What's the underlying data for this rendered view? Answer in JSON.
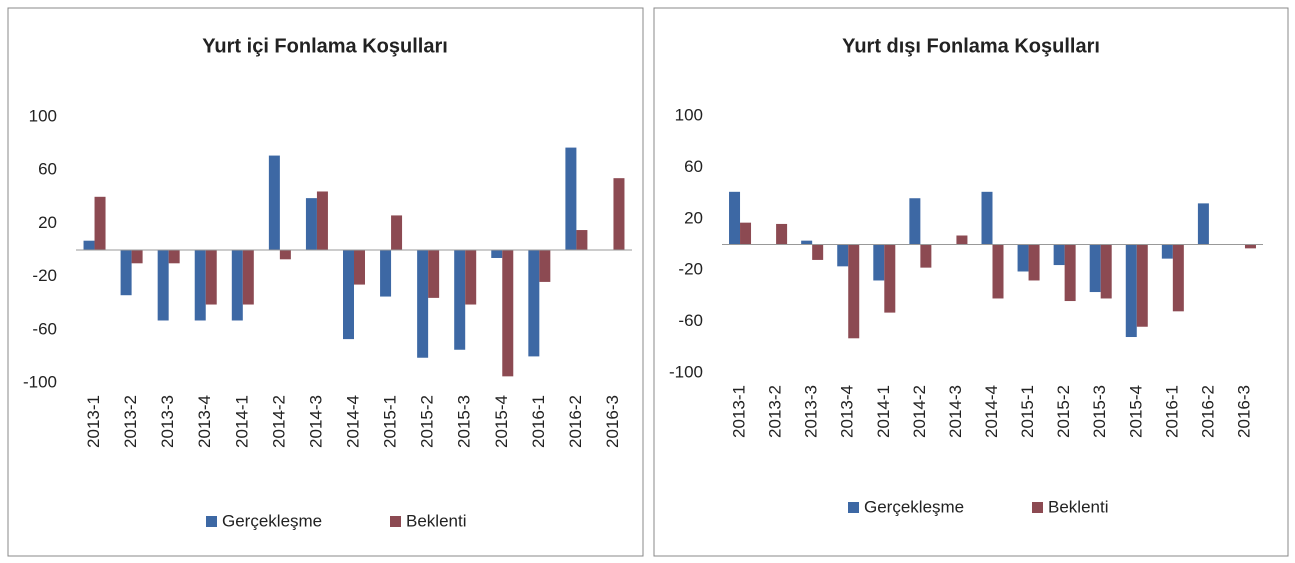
{
  "chart_data": [
    {
      "type": "bar",
      "title": "Yurt içi Fonlama Koşulları",
      "categories": [
        "2013-1",
        "2013-2",
        "2013-3",
        "2013-4",
        "2014-1",
        "2014-2",
        "2014-3",
        "2014-4",
        "2015-1",
        "2015-2",
        "2015-3",
        "2015-4",
        "2016-1",
        "2016-2",
        "2016-3"
      ],
      "series": [
        {
          "name": "Gerçekleşme",
          "color": "#3d68a4",
          "values": [
            7,
            -34,
            -53,
            -53,
            -53,
            71,
            39,
            -67,
            -35,
            -81,
            -75,
            -6,
            -80,
            77,
            0
          ]
        },
        {
          "name": "Beklenti",
          "color": "#8c4a52",
          "values": [
            40,
            -10,
            -10,
            -41,
            -41,
            -7,
            44,
            -26,
            26,
            -36,
            -41,
            -95,
            -24,
            15,
            54
          ]
        }
      ],
      "ylim": [
        -100,
        100
      ],
      "yticks": [
        -100,
        -60,
        -20,
        20,
        60,
        100
      ],
      "legend": "bottom"
    },
    {
      "type": "bar",
      "title": "Yurt dışı Fonlama Koşulları",
      "categories": [
        "2013-1",
        "2013-2",
        "2013-3",
        "2013-4",
        "2014-1",
        "2014-2",
        "2014-3",
        "2014-4",
        "2015-1",
        "2015-2",
        "2015-3",
        "2015-4",
        "2016-1",
        "2016-2",
        "2016-3"
      ],
      "series": [
        {
          "name": "Gerçekleşme",
          "color": "#3d68a4",
          "values": [
            41,
            0,
            3,
            -17,
            -28,
            36,
            0,
            41,
            -21,
            -16,
            -37,
            -72,
            -11,
            32,
            0
          ]
        },
        {
          "name": "Beklenti",
          "color": "#8c4a52",
          "values": [
            17,
            16,
            -12,
            -73,
            -53,
            -18,
            7,
            -42,
            -28,
            -44,
            -42,
            -64,
            -52,
            0,
            -3
          ]
        }
      ],
      "ylim": [
        -100,
        100
      ],
      "yticks": [
        -100,
        -60,
        -20,
        20,
        60,
        100
      ],
      "legend": "bottom"
    }
  ]
}
